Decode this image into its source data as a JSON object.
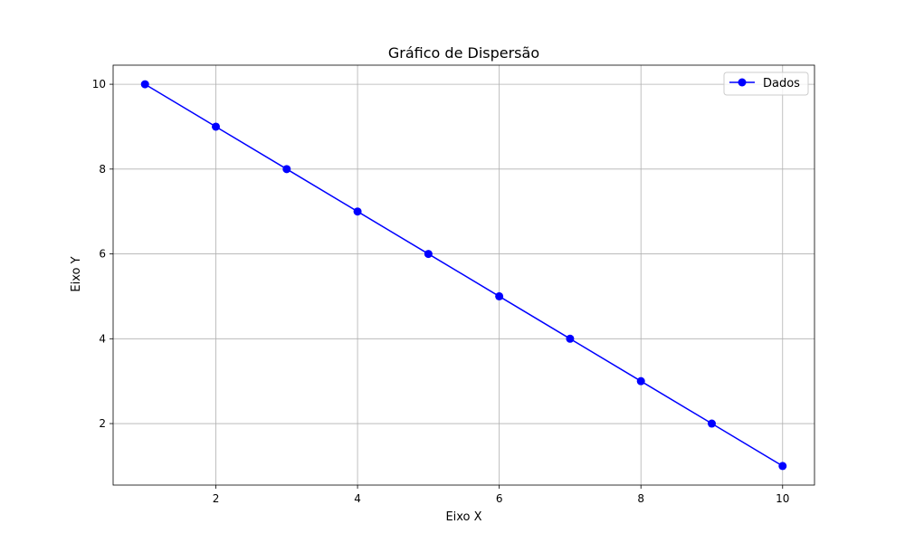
{
  "chart_data": {
    "type": "line",
    "title": "Gráfico de Dispersão",
    "xlabel": "Eixo X",
    "ylabel": "Eixo Y",
    "xlim": [
      0.55,
      10.45
    ],
    "ylim": [
      0.55,
      10.45
    ],
    "x_ticks": [
      2,
      4,
      6,
      8,
      10
    ],
    "y_ticks": [
      2,
      4,
      6,
      8,
      10
    ],
    "grid": true,
    "legend_position": "upper right",
    "series": [
      {
        "name": "Dados",
        "color": "#0000ff",
        "marker": "circle",
        "x": [
          1,
          2,
          3,
          4,
          5,
          6,
          7,
          8,
          9,
          10
        ],
        "y": [
          10,
          9,
          8,
          7,
          6,
          5,
          4,
          3,
          2,
          1
        ]
      }
    ]
  }
}
